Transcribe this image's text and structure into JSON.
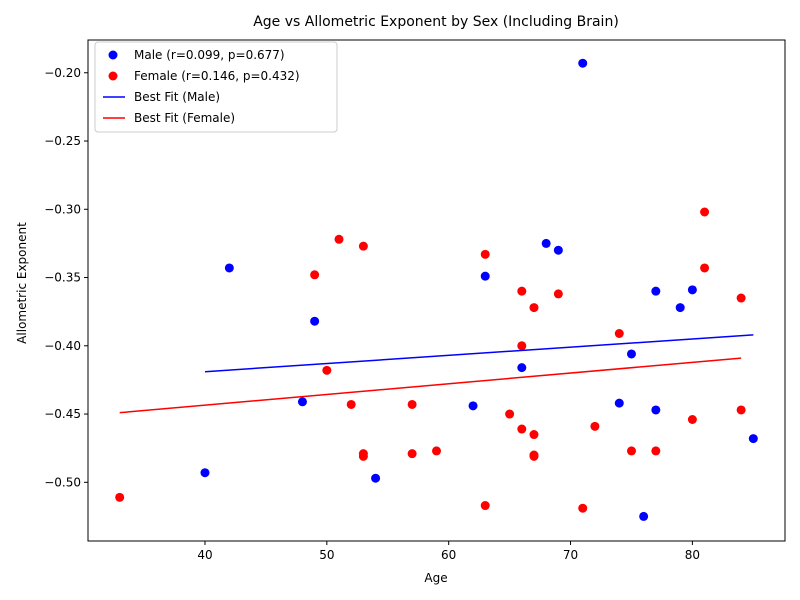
{
  "chart_data": {
    "type": "scatter",
    "title": "Age vs Allometric Exponent by Sex (Including Brain)",
    "xlabel": "Age",
    "ylabel": "Allometric Exponent",
    "xlim": [
      30.4,
      87.6
    ],
    "ylim": [
      -0.543,
      -0.176
    ],
    "xticks": [
      40,
      50,
      60,
      70,
      80
    ],
    "yticks": [
      -0.5,
      -0.45,
      -0.4,
      -0.35,
      -0.3,
      -0.25,
      -0.2
    ],
    "grid": false,
    "legend_position": "top-left",
    "series": [
      {
        "name": "Male (r=0.099, p=0.677)",
        "kind": "scatter",
        "color": "#0000ff",
        "points": [
          [
            40,
            -0.493
          ],
          [
            42,
            -0.343
          ],
          [
            48,
            -0.441
          ],
          [
            49,
            -0.382
          ],
          [
            54,
            -0.497
          ],
          [
            62,
            -0.444
          ],
          [
            63,
            -0.349
          ],
          [
            66,
            -0.416
          ],
          [
            68,
            -0.325
          ],
          [
            69,
            -0.33
          ],
          [
            71,
            -0.193
          ],
          [
            74,
            -0.442
          ],
          [
            75,
            -0.406
          ],
          [
            76,
            -0.525
          ],
          [
            77,
            -0.36
          ],
          [
            77,
            -0.447
          ],
          [
            79,
            -0.372
          ],
          [
            80,
            -0.359
          ],
          [
            85,
            -0.468
          ]
        ]
      },
      {
        "name": "Female (r=0.146, p=0.432)",
        "kind": "scatter",
        "color": "#ff0000",
        "points": [
          [
            33,
            -0.511
          ],
          [
            49,
            -0.348
          ],
          [
            50,
            -0.418
          ],
          [
            51,
            -0.322
          ],
          [
            52,
            -0.443
          ],
          [
            53,
            -0.327
          ],
          [
            53,
            -0.479
          ],
          [
            53,
            -0.481
          ],
          [
            57,
            -0.443
          ],
          [
            57,
            -0.479
          ],
          [
            59,
            -0.477
          ],
          [
            63,
            -0.333
          ],
          [
            63,
            -0.517
          ],
          [
            65,
            -0.45
          ],
          [
            66,
            -0.36
          ],
          [
            66,
            -0.4
          ],
          [
            66,
            -0.461
          ],
          [
            67,
            -0.372
          ],
          [
            67,
            -0.465
          ],
          [
            67,
            -0.48
          ],
          [
            67,
            -0.481
          ],
          [
            69,
            -0.362
          ],
          [
            71,
            -0.519
          ],
          [
            72,
            -0.459
          ],
          [
            74,
            -0.391
          ],
          [
            75,
            -0.477
          ],
          [
            77,
            -0.477
          ],
          [
            80,
            -0.454
          ],
          [
            81,
            -0.302
          ],
          [
            81,
            -0.343
          ],
          [
            84,
            -0.365
          ],
          [
            84,
            -0.447
          ]
        ]
      },
      {
        "name": "Best Fit (Male)",
        "kind": "line",
        "color": "#0000ff",
        "points": [
          [
            40,
            -0.419
          ],
          [
            85,
            -0.392
          ]
        ]
      },
      {
        "name": "Best Fit (Female)",
        "kind": "line",
        "color": "#ff0000",
        "points": [
          [
            33,
            -0.449
          ],
          [
            84,
            -0.409
          ]
        ]
      }
    ]
  }
}
